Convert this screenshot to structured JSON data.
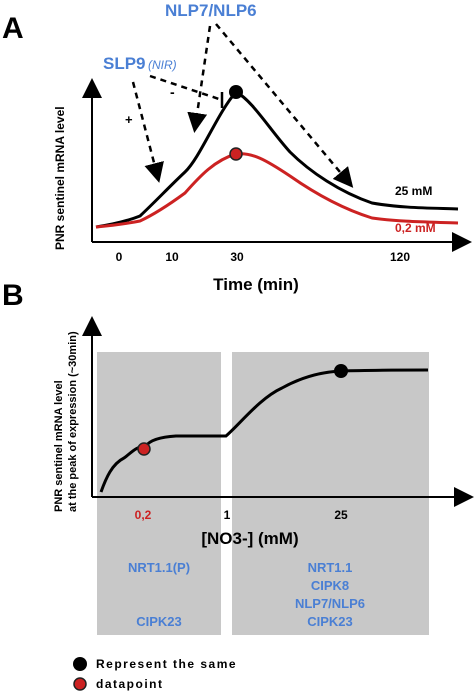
{
  "panel_a": {
    "label": "A",
    "ylabel": "PNR sentinel mRNA level",
    "xlabel": "Time (min)",
    "x_ticks": [
      "0",
      "10",
      "30",
      "120"
    ],
    "slp9_label": "SLP9",
    "slp9_sub": "(NIR)",
    "nlp_label": "NLP7/NLP6",
    "plus_sign": "+",
    "minus_sign": "-",
    "series_25_label": "25 mM",
    "series_02_label": "0,2 mM",
    "colors": {
      "series_25": "#000000",
      "series_02": "#cc2222",
      "regulator": "#4a7fd4"
    }
  },
  "panel_b": {
    "label": "B",
    "ylabel_line1": "PNR sentinel mRNA level",
    "ylabel_line2": "at the peak of expression (~30min)",
    "xlabel": "[NO3-] (mM)",
    "x_ticks": [
      "0,2",
      "1",
      "25"
    ],
    "left_box": {
      "top": "NRT1.1(P)",
      "bottom": "CIPK23"
    },
    "right_box": [
      "NRT1.1",
      "CIPK8",
      "NLP7/NLP6",
      "CIPK23"
    ],
    "box_color": "#c8c8c8"
  },
  "legend": {
    "line1": "Represent the same",
    "line2": "datapoint"
  }
}
